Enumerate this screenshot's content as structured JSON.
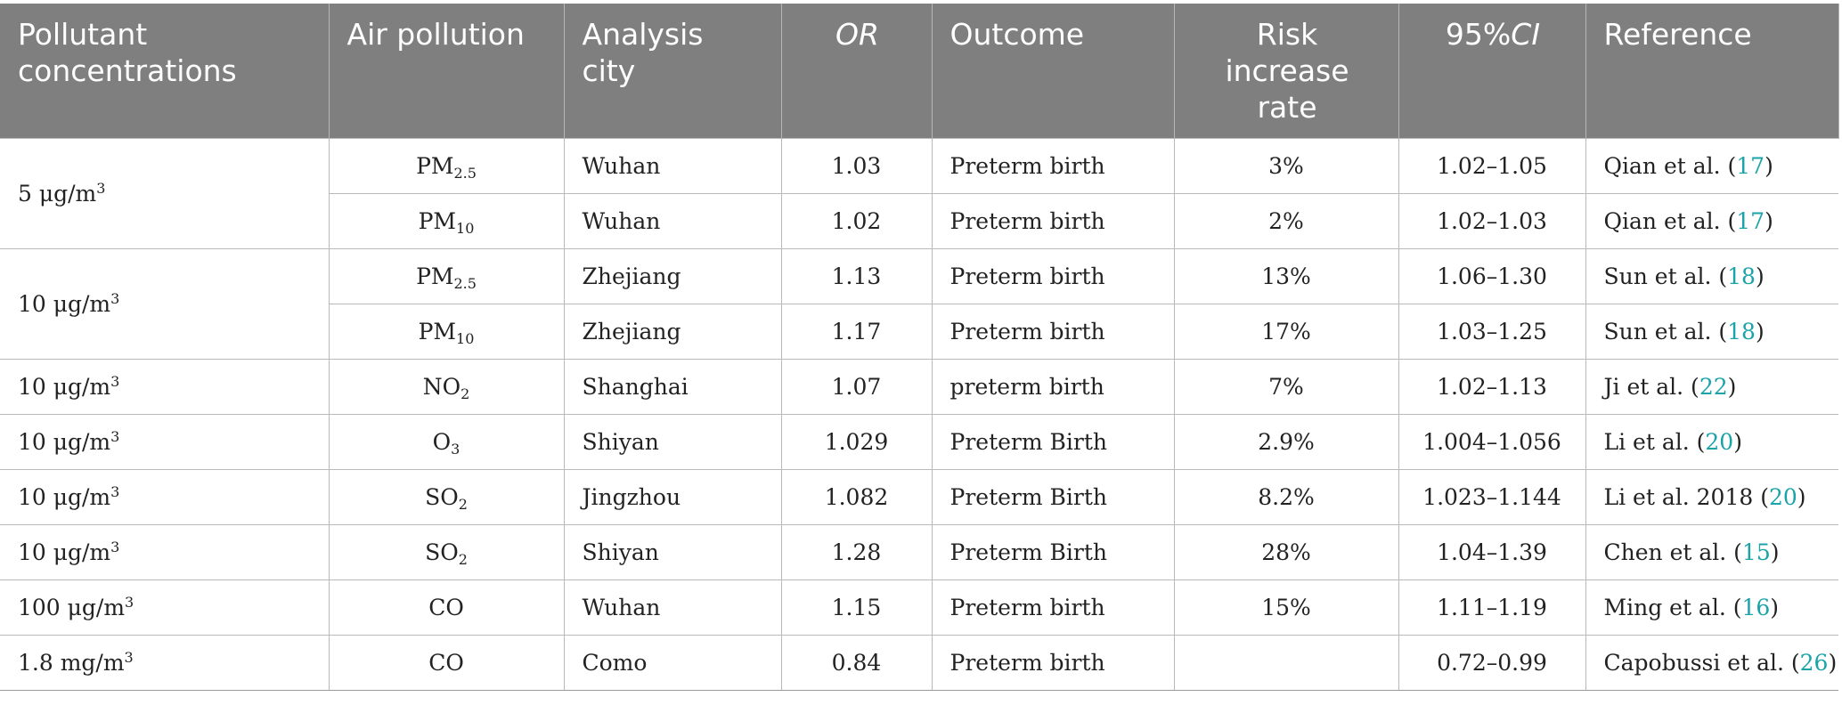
{
  "header": {
    "col1": "Pollutant concentrations",
    "col2": "Air pollution",
    "col3": "Analysis city",
    "col4": "OR",
    "col5": "Outcome",
    "col6": "Risk increase rate",
    "col7_prefix": "95%",
    "col7_italic": "CI",
    "col8": "Reference"
  },
  "groups": [
    {
      "concentration": "5 μg/m",
      "conc_sup": "3"
    },
    {
      "concentration": "10 μg/m",
      "conc_sup": "3"
    }
  ],
  "rows": [
    {
      "concentration": "",
      "pollutant": "PM",
      "pollutant_sub": "2.5",
      "city": "Wuhan",
      "or": "1.03",
      "outcome": "Preterm birth",
      "risk": "3%",
      "ci": "1.02–1.05",
      "ref_text": "Qian et al. (",
      "ref_num": "17",
      "ref_close": ")"
    },
    {
      "concentration": "",
      "pollutant": "PM",
      "pollutant_sub": "10",
      "city": "Wuhan",
      "or": "1.02",
      "outcome": "Preterm birth",
      "risk": "2%",
      "ci": "1.02–1.03",
      "ref_text": "Qian et al. (",
      "ref_num": "17",
      "ref_close": ")"
    },
    {
      "concentration": "",
      "pollutant": "PM",
      "pollutant_sub": "2.5",
      "city": "Zhejiang",
      "or": "1.13",
      "outcome": "Preterm birth",
      "risk": "13%",
      "ci": "1.06–1.30",
      "ref_text": "Sun et al. (",
      "ref_num": "18",
      "ref_close": ")"
    },
    {
      "concentration": "",
      "pollutant": "PM",
      "pollutant_sub": "10",
      "city": "Zhejiang",
      "or": "1.17",
      "outcome": "Preterm birth",
      "risk": "17%",
      "ci": "1.03–1.25",
      "ref_text": "Sun et al. (",
      "ref_num": "18",
      "ref_close": ")"
    },
    {
      "concentration": "10 μg/m",
      "conc_sup": "3",
      "pollutant": "NO",
      "pollutant_sub": "2",
      "city": "Shanghai",
      "or": "1.07",
      "outcome": "preterm birth",
      "risk": "7%",
      "ci": "1.02–1.13",
      "ref_text": "Ji et al. (",
      "ref_num": "22",
      "ref_close": ")"
    },
    {
      "concentration": "10 μg/m",
      "conc_sup": "3",
      "pollutant": "O",
      "pollutant_sub": "3",
      "city": "Shiyan",
      "or": "1.029",
      "outcome": "Preterm Birth",
      "risk": "2.9%",
      "ci": "1.004–1.056",
      "ref_text": "Li et al. (",
      "ref_num": "20",
      "ref_close": ")"
    },
    {
      "concentration": "10 μg/m",
      "conc_sup": "3",
      "pollutant": "SO",
      "pollutant_sub": "2",
      "city": "Jingzhou",
      "or": "1.082",
      "outcome": "Preterm Birth",
      "risk": "8.2%",
      "ci": "1.023–1.144",
      "ref_text": "Li et al. 2018 (",
      "ref_num": "20",
      "ref_close": ")"
    },
    {
      "concentration": "10 μg/m",
      "conc_sup": "3",
      "pollutant": "SO",
      "pollutant_sub": "2",
      "city": "Shiyan",
      "or": "1.28",
      "outcome": "Preterm Birth",
      "risk": "28%",
      "ci": "1.04–1.39",
      "ref_text": "Chen et al. (",
      "ref_num": "15",
      "ref_close": ")"
    },
    {
      "concentration": "100 μg/m",
      "conc_sup": "3",
      "pollutant": "CO",
      "pollutant_sub": "",
      "city": "Wuhan",
      "or": "1.15",
      "outcome": "Preterm birth",
      "risk": "15%",
      "ci": "1.11–1.19",
      "ref_text": "Ming et al. (",
      "ref_num": "16",
      "ref_close": ")"
    },
    {
      "concentration": "1.8 mg/m",
      "conc_sup": "3",
      "pollutant": "CO",
      "pollutant_sub": "",
      "city": "Como",
      "or": "0.84",
      "outcome": "Preterm birth",
      "risk": "",
      "ci": "0.72–0.99",
      "ref_text": "Capobussi et al. (",
      "ref_num": "26",
      "ref_close": ")"
    }
  ]
}
